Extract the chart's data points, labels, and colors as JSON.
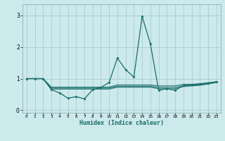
{
  "xlabel": "Humidex (Indice chaleur)",
  "bg_color": "#cce9ec",
  "grid_color": "#aacdd2",
  "line_color": "#1a6e6a",
  "xlim": [
    -0.5,
    23.5
  ],
  "ylim": [
    -0.08,
    3.35
  ],
  "yticks": [
    0,
    1,
    2,
    3
  ],
  "xticks": [
    0,
    1,
    2,
    3,
    4,
    5,
    6,
    7,
    8,
    9,
    10,
    11,
    12,
    13,
    14,
    15,
    16,
    17,
    18,
    19,
    20,
    21,
    22,
    23
  ],
  "series1_x": [
    0,
    1,
    2,
    3,
    4,
    5,
    6,
    7,
    8,
    9,
    10,
    11,
    12,
    13,
    14,
    15,
    16,
    17,
    18,
    19,
    20,
    21,
    22,
    23
  ],
  "series1_y": [
    1.0,
    1.0,
    1.0,
    0.65,
    0.55,
    0.38,
    0.43,
    0.36,
    0.65,
    0.72,
    0.88,
    1.65,
    1.28,
    1.05,
    2.97,
    2.1,
    0.63,
    0.68,
    0.63,
    0.78,
    0.8,
    0.83,
    0.85,
    0.9
  ],
  "series2_x": [
    0,
    1,
    2,
    3,
    4,
    5,
    6,
    7,
    8,
    9,
    10,
    11,
    12,
    13,
    14,
    15,
    16,
    17,
    18,
    19,
    20,
    21,
    22,
    23
  ],
  "series2_y": [
    1.0,
    1.0,
    1.0,
    0.73,
    0.73,
    0.73,
    0.73,
    0.73,
    0.73,
    0.73,
    0.73,
    0.8,
    0.8,
    0.8,
    0.8,
    0.8,
    0.77,
    0.77,
    0.77,
    0.82,
    0.82,
    0.84,
    0.87,
    0.9
  ],
  "series3_x": [
    0,
    1,
    2,
    3,
    4,
    5,
    6,
    7,
    8,
    9,
    10,
    11,
    12,
    13,
    14,
    15,
    16,
    17,
    18,
    19,
    20,
    21,
    22,
    23
  ],
  "series3_y": [
    1.0,
    1.0,
    1.0,
    0.7,
    0.7,
    0.7,
    0.7,
    0.7,
    0.7,
    0.7,
    0.7,
    0.76,
    0.76,
    0.76,
    0.76,
    0.76,
    0.72,
    0.72,
    0.72,
    0.78,
    0.79,
    0.81,
    0.85,
    0.89
  ],
  "series4_x": [
    0,
    1,
    2,
    3,
    4,
    5,
    6,
    7,
    8,
    9,
    10,
    11,
    12,
    13,
    14,
    15,
    16,
    17,
    18,
    19,
    20,
    21,
    22,
    23
  ],
  "series4_y": [
    1.0,
    1.0,
    1.0,
    0.67,
    0.67,
    0.67,
    0.67,
    0.67,
    0.67,
    0.67,
    0.67,
    0.73,
    0.73,
    0.73,
    0.73,
    0.73,
    0.68,
    0.68,
    0.68,
    0.75,
    0.77,
    0.79,
    0.83,
    0.88
  ]
}
